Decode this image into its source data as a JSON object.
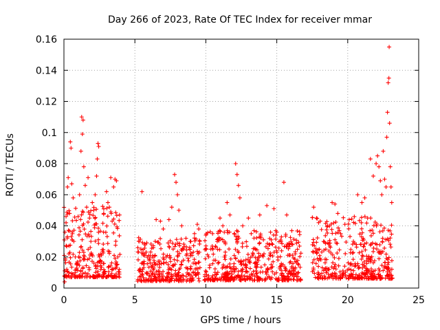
{
  "chart_data": {
    "type": "scatter",
    "title": "Day 266 of 2023, Rate Of TEC Index for receiver mmar",
    "xlabel": "GPS time / hours",
    "ylabel": "ROTI / TECUs",
    "xlim": [
      0,
      25
    ],
    "ylim": [
      0,
      0.16
    ],
    "x_ticks": [
      0,
      5,
      10,
      15,
      20,
      25
    ],
    "x_tick_labels": [
      "0",
      "5",
      "10",
      "15",
      "20",
      "25"
    ],
    "y_ticks": [
      0,
      0.02,
      0.04,
      0.06,
      0.08,
      0.1,
      0.12,
      0.14,
      0.16
    ],
    "y_tick_labels": [
      "0",
      "0.02",
      "0.04",
      "0.06",
      "0.08",
      "0.1",
      "0.12",
      "0.14",
      "0.16"
    ],
    "grid": true,
    "marker": "plus",
    "color": "#ff0000",
    "series": [
      {
        "points": [
          [
            0.05,
            0.004
          ],
          [
            0.1,
            0.018
          ],
          [
            0.15,
            0.042
          ],
          [
            0.2,
            0.012
          ],
          [
            0.25,
            0.065
          ],
          [
            0.3,
            0.071
          ],
          [
            0.35,
            0.022
          ],
          [
            0.4,
            0.048
          ],
          [
            0.45,
            0.094
          ],
          [
            0.5,
            0.09
          ],
          [
            0.55,
            0.067
          ],
          [
            0.6,
            0.035
          ],
          [
            0.65,
            0.058
          ],
          [
            0.7,
            0.03
          ],
          [
            0.8,
            0.02
          ],
          [
            0.9,
            0.015
          ],
          [
            1.0,
            0.046
          ],
          [
            1.1,
            0.06
          ],
          [
            1.2,
            0.088
          ],
          [
            1.25,
            0.11
          ],
          [
            1.3,
            0.099
          ],
          [
            1.35,
            0.108
          ],
          [
            1.4,
            0.078
          ],
          [
            1.5,
            0.066
          ],
          [
            1.6,
            0.052
          ],
          [
            1.7,
            0.071
          ],
          [
            1.8,
            0.045
          ],
          [
            1.9,
            0.03
          ],
          [
            2.0,
            0.055
          ],
          [
            2.1,
            0.05
          ],
          [
            2.2,
            0.06
          ],
          [
            2.3,
            0.072
          ],
          [
            2.35,
            0.083
          ],
          [
            2.4,
            0.093
          ],
          [
            2.45,
            0.091
          ],
          [
            2.5,
            0.02
          ],
          [
            2.6,
            0.012
          ],
          [
            2.8,
            0.01
          ],
          [
            3.0,
            0.062
          ],
          [
            3.1,
            0.055
          ],
          [
            3.2,
            0.052
          ],
          [
            3.3,
            0.071
          ],
          [
            3.4,
            0.043
          ],
          [
            3.5,
            0.065
          ],
          [
            3.6,
            0.07
          ],
          [
            3.7,
            0.069
          ],
          [
            3.8,
            0.02
          ],
          [
            3.9,
            0.012
          ],
          [
            5.3,
            0.03
          ],
          [
            5.5,
            0.062
          ],
          [
            5.7,
            0.022
          ],
          [
            6.0,
            0.018
          ],
          [
            6.3,
            0.026
          ],
          [
            6.5,
            0.044
          ],
          [
            6.8,
            0.043
          ],
          [
            7.0,
            0.038
          ],
          [
            7.2,
            0.02
          ],
          [
            7.4,
            0.044
          ],
          [
            7.6,
            0.052
          ],
          [
            7.8,
            0.073
          ],
          [
            7.9,
            0.068
          ],
          [
            8.0,
            0.06
          ],
          [
            8.1,
            0.05
          ],
          [
            8.3,
            0.04
          ],
          [
            8.6,
            0.032
          ],
          [
            8.9,
            0.03
          ],
          [
            9.2,
            0.035
          ],
          [
            9.4,
            0.041
          ],
          [
            9.5,
            0.038
          ],
          [
            10.0,
            0.034
          ],
          [
            10.2,
            0.02
          ],
          [
            10.5,
            0.025
          ],
          [
            10.8,
            0.03
          ],
          [
            11.0,
            0.045
          ],
          [
            11.2,
            0.04
          ],
          [
            11.5,
            0.055
          ],
          [
            11.7,
            0.047
          ],
          [
            12.0,
            0.035
          ],
          [
            12.1,
            0.08
          ],
          [
            12.2,
            0.073
          ],
          [
            12.3,
            0.066
          ],
          [
            12.4,
            0.058
          ],
          [
            12.6,
            0.04
          ],
          [
            13.0,
            0.045
          ],
          [
            13.2,
            0.035
          ],
          [
            13.5,
            0.025
          ],
          [
            13.8,
            0.047
          ],
          [
            14.0,
            0.021
          ],
          [
            14.3,
            0.053
          ],
          [
            14.5,
            0.028
          ],
          [
            14.8,
            0.051
          ],
          [
            15.0,
            0.036
          ],
          [
            15.3,
            0.03
          ],
          [
            15.5,
            0.068
          ],
          [
            15.7,
            0.047
          ],
          [
            16.0,
            0.03
          ],
          [
            16.3,
            0.022
          ],
          [
            16.6,
            0.027
          ],
          [
            17.6,
            0.052
          ],
          [
            17.8,
            0.045
          ],
          [
            18.0,
            0.025
          ],
          [
            18.3,
            0.03
          ],
          [
            18.6,
            0.04
          ],
          [
            18.9,
            0.055
          ],
          [
            19.1,
            0.054
          ],
          [
            19.3,
            0.048
          ],
          [
            19.5,
            0.035
          ],
          [
            19.8,
            0.041
          ],
          [
            20.1,
            0.044
          ],
          [
            20.4,
            0.03
          ],
          [
            20.7,
            0.06
          ],
          [
            21.0,
            0.055
          ],
          [
            21.2,
            0.058
          ],
          [
            21.4,
            0.045
          ],
          [
            21.6,
            0.083
          ],
          [
            21.8,
            0.072
          ],
          [
            22.0,
            0.08
          ],
          [
            22.1,
            0.085
          ],
          [
            22.2,
            0.078
          ],
          [
            22.3,
            0.069
          ],
          [
            22.4,
            0.06
          ],
          [
            22.5,
            0.088
          ],
          [
            22.6,
            0.07
          ],
          [
            22.7,
            0.065
          ],
          [
            22.75,
            0.097
          ],
          [
            22.8,
            0.113
          ],
          [
            22.85,
            0.132
          ],
          [
            22.9,
            0.135
          ],
          [
            22.92,
            0.155
          ],
          [
            22.95,
            0.106
          ],
          [
            23.0,
            0.078
          ],
          [
            23.05,
            0.065
          ],
          [
            23.1,
            0.055
          ]
        ]
      }
    ],
    "clusters": [
      [
        0.0,
        3.95,
        0.028,
        0.018
      ],
      [
        5.2,
        9.6,
        0.018,
        0.01
      ],
      [
        9.9,
        16.7,
        0.02,
        0.012
      ],
      [
        17.5,
        23.15,
        0.024,
        0.016
      ]
    ]
  }
}
